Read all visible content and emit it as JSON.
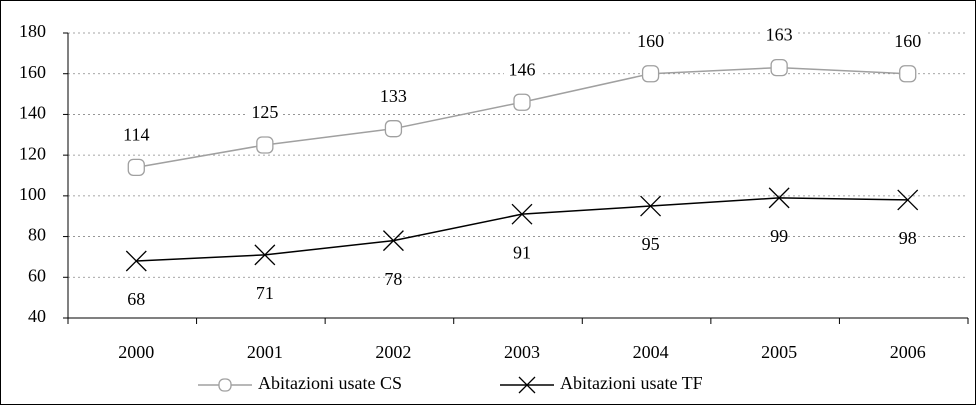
{
  "chart_data": {
    "type": "line",
    "categories": [
      "2000",
      "2001",
      "2002",
      "2003",
      "2004",
      "2005",
      "2006"
    ],
    "series": [
      {
        "name": "Abitazioni usate CS",
        "color": "#a0a0a0",
        "marker": "square",
        "values": [
          114,
          125,
          133,
          146,
          160,
          163,
          160
        ]
      },
      {
        "name": "Abitazioni usate TF",
        "color": "#000000",
        "marker": "x",
        "values": [
          68,
          71,
          78,
          91,
          95,
          99,
          98
        ]
      }
    ],
    "ylim": [
      40,
      180
    ],
    "yticks": [
      40,
      60,
      80,
      100,
      120,
      140,
      160,
      180
    ],
    "grid": true,
    "legend": "bottom"
  }
}
